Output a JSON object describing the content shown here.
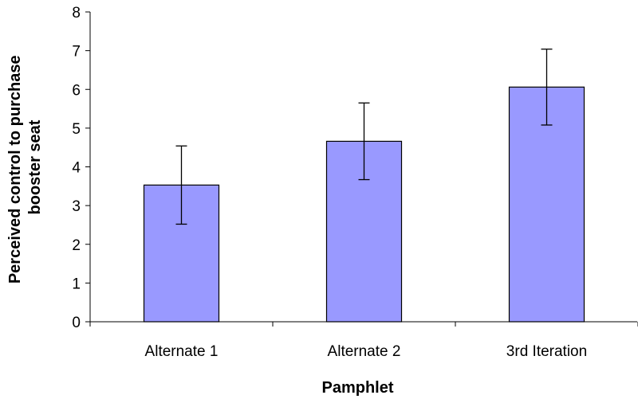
{
  "chart_data": {
    "type": "bar",
    "title": "",
    "xlabel": "Pamphlet",
    "ylabel_lines": [
      "Perceived control to purchase",
      "booster seat"
    ],
    "categories": [
      "Alternate 1",
      "Alternate 2",
      "3rd Iteration"
    ],
    "values": [
      3.53,
      4.66,
      6.06
    ],
    "error": [
      1.01,
      0.99,
      0.98
    ],
    "ylim": [
      0,
      8
    ],
    "yticks": [
      0,
      1,
      2,
      3,
      4,
      5,
      6,
      7,
      8
    ],
    "grid": false,
    "legend": "none",
    "colors": {
      "bar_fill": "#9999ff",
      "bar_stroke": "#000000",
      "axis": "#000000"
    }
  }
}
